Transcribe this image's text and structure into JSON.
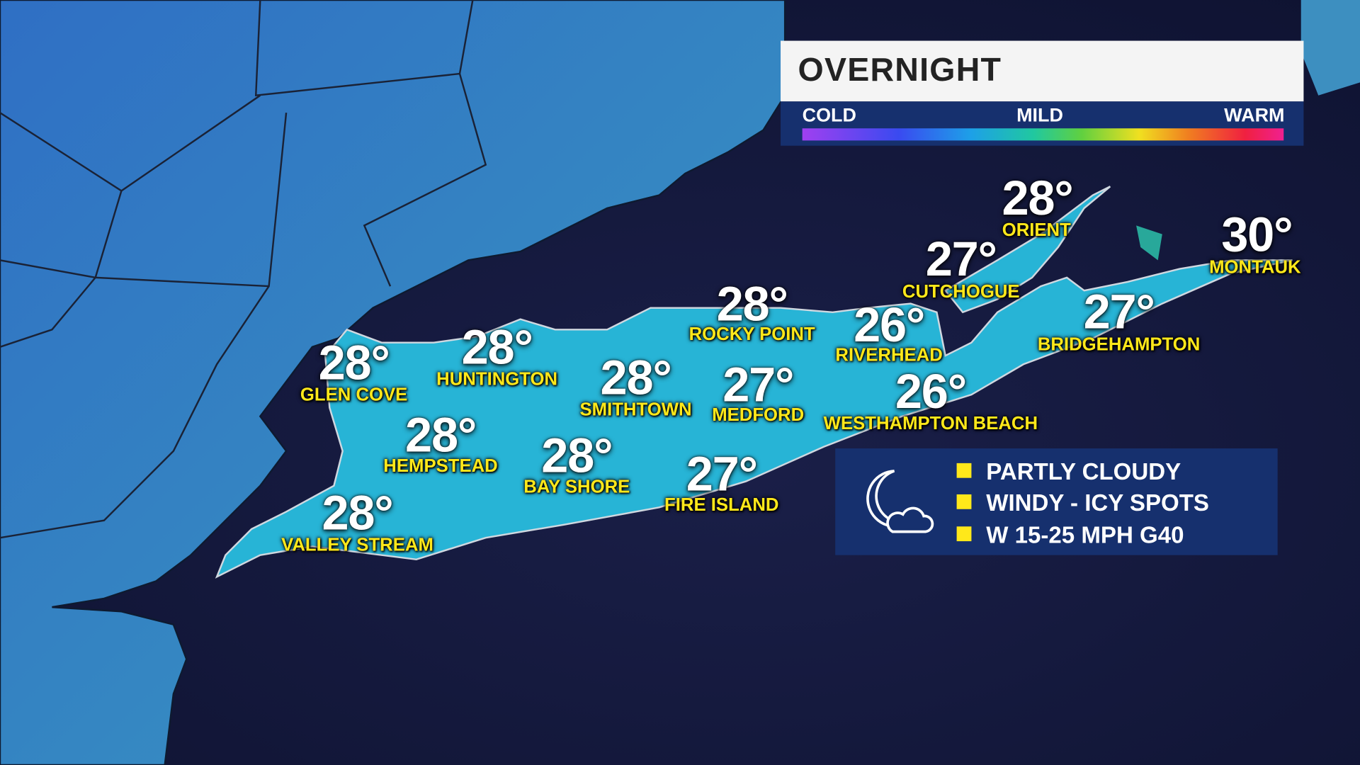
{
  "header": {
    "title": "OVERNIGHT"
  },
  "temperature_scale": {
    "labels": [
      "COLD",
      "MILD",
      "WARM"
    ],
    "colors": [
      "#a040f0",
      "#3a4af0",
      "#1da0e8",
      "#20c8a0",
      "#60d040",
      "#f0e020",
      "#f08020",
      "#f02040",
      "#f02090"
    ]
  },
  "cities": [
    {
      "name": "ORIENT",
      "temp": "28°"
    },
    {
      "name": "MONTAUK",
      "temp": "30°"
    },
    {
      "name": "CUTCHOGUE",
      "temp": "27°"
    },
    {
      "name": "ROCKY POINT",
      "temp": "28°"
    },
    {
      "name": "RIVERHEAD",
      "temp": "26°"
    },
    {
      "name": "BRIDGEHAMPTON",
      "temp": "27°"
    },
    {
      "name": "GLEN COVE",
      "temp": "28°"
    },
    {
      "name": "HUNTINGTON",
      "temp": "28°"
    },
    {
      "name": "SMITHTOWN",
      "temp": "28°"
    },
    {
      "name": "MEDFORD",
      "temp": "27°"
    },
    {
      "name": "WESTHAMPTON BEACH",
      "temp": "26°"
    },
    {
      "name": "HEMPSTEAD",
      "temp": "28°"
    },
    {
      "name": "BAY SHORE",
      "temp": "28°"
    },
    {
      "name": "FIRE ISLAND",
      "temp": "27°"
    },
    {
      "name": "VALLEY STREAM",
      "temp": "28°"
    }
  ],
  "conditions": {
    "icon": "moon-cloud-icon",
    "items": [
      "PARTLY CLOUDY",
      "WINDY - ICY SPOTS",
      "W 15-25 MPH G40"
    ],
    "bullet_color": "#ffe81a"
  },
  "colors": {
    "ocean": "#141838",
    "land": "#3a86c0",
    "long_island": "#28b8d8",
    "panel": "#16306e",
    "label": "#ffe81a"
  }
}
